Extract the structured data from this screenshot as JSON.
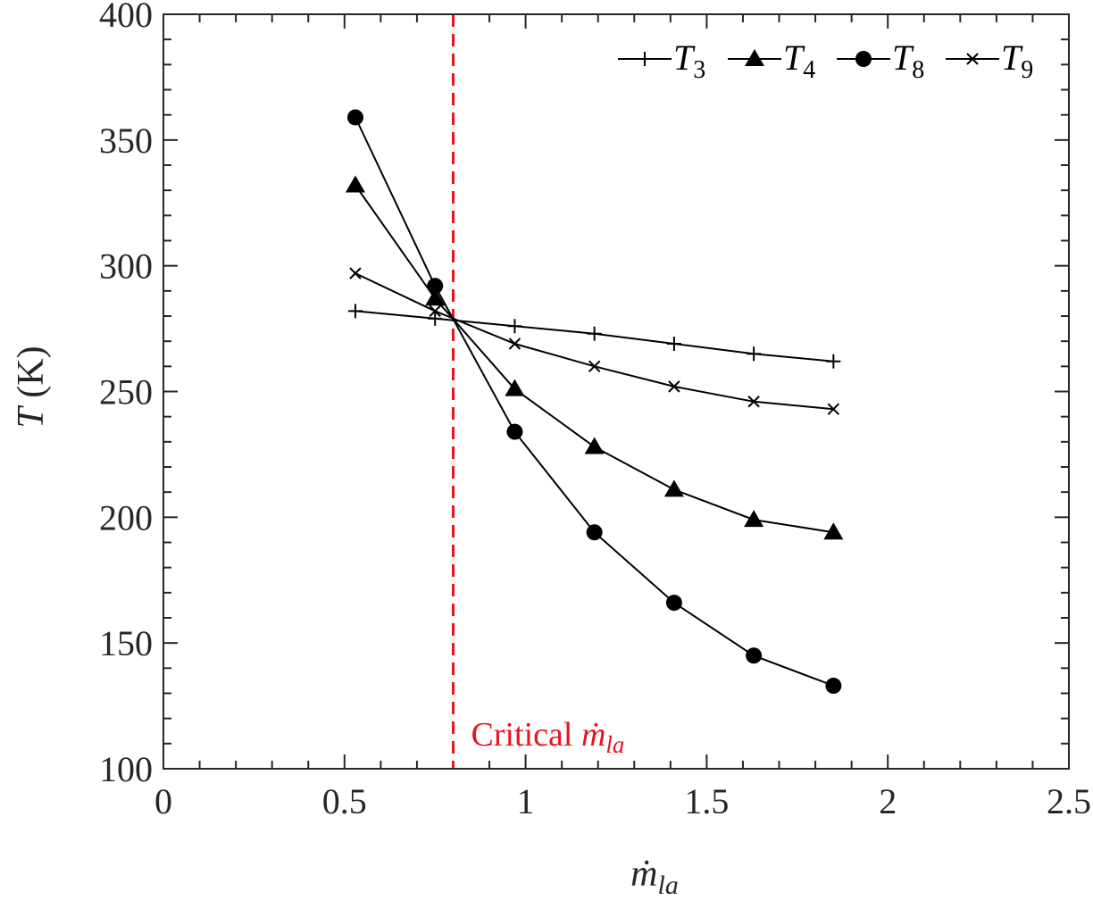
{
  "chart_data": {
    "type": "line",
    "title": "",
    "xlabel": {
      "base": "ṁ",
      "sub": "la"
    },
    "ylabel": {
      "main": "T",
      "unit": "(K)"
    },
    "xlim": [
      0,
      2.5
    ],
    "ylim": [
      100,
      400
    ],
    "x_ticks": [
      "0",
      "0.5",
      "1",
      "1.5",
      "2",
      "2.5"
    ],
    "y_ticks": [
      "100",
      "150",
      "200",
      "250",
      "300",
      "350",
      "400"
    ],
    "x_minor_step": 0.1,
    "y_minor_step": 10,
    "grid": false,
    "legend_position": "top-right",
    "x": [
      0.53,
      0.75,
      0.97,
      1.19,
      1.41,
      1.63,
      1.85
    ],
    "series": [
      {
        "name": "T",
        "sub": "3",
        "marker": "plus",
        "values": [
          282,
          279,
          276,
          273,
          269,
          265,
          262
        ]
      },
      {
        "name": "T",
        "sub": "4",
        "marker": "triangle",
        "values": [
          332,
          287,
          251,
          228,
          211,
          199,
          194
        ]
      },
      {
        "name": "T",
        "sub": "8",
        "marker": "circle",
        "values": [
          359,
          292,
          234,
          194,
          166,
          145,
          133
        ]
      },
      {
        "name": "T",
        "sub": "9",
        "marker": "x",
        "values": [
          297,
          282,
          269,
          260,
          252,
          246,
          243
        ]
      }
    ],
    "critical_line": {
      "x": 0.8,
      "label": "Critical ",
      "label_math": "ṁ",
      "label_sub": "la",
      "color": "#e8141e"
    }
  }
}
